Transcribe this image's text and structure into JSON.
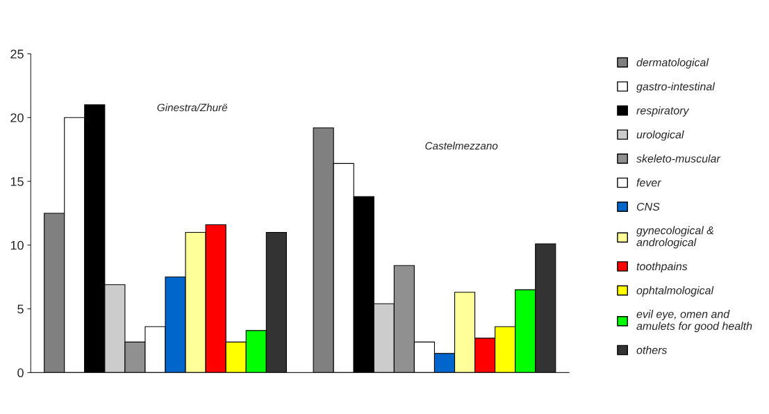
{
  "chart_data": {
    "type": "bar",
    "categories": [
      "Ginestra/Zhurë",
      "Castelmezzano"
    ],
    "series": [
      {
        "name": "dermatological",
        "color": "#808080",
        "values": [
          12.5,
          19.2
        ]
      },
      {
        "name": "gastro-intestinal",
        "color": "#ffffff",
        "values": [
          20,
          16.4
        ]
      },
      {
        "name": "respiratory",
        "color": "#000000",
        "values": [
          21,
          13.8
        ]
      },
      {
        "name": "urological",
        "color": "#cccccc",
        "values": [
          6.9,
          5.4
        ]
      },
      {
        "name": "skeleto-muscular",
        "color": "#909090",
        "values": [
          2.4,
          8.4
        ]
      },
      {
        "name": "fever",
        "color": "#ffffff",
        "values": [
          3.6,
          2.4
        ]
      },
      {
        "name": "CNS",
        "color": "#0066cc",
        "values": [
          7.5,
          1.5
        ]
      },
      {
        "name": "gynecological &\nandrological",
        "color": "#ffff99",
        "values": [
          11,
          6.3
        ]
      },
      {
        "name": "toothpains",
        "color": "#ff0000",
        "values": [
          11.6,
          2.7
        ]
      },
      {
        "name": "ophtalmological",
        "color": "#ffff00",
        "values": [
          2.4,
          3.6
        ]
      },
      {
        "name": "evil eye, omen and\namulets for good health",
        "color": "#00ff00",
        "values": [
          3.3,
          6.5
        ]
      },
      {
        "name": "others",
        "color": "#333333",
        "values": [
          11,
          10.1
        ]
      }
    ],
    "ylim": [
      0,
      25
    ],
    "yticks": [
      0,
      5,
      10,
      15,
      20,
      25
    ],
    "tick_labels": "y",
    "grid": false,
    "legend": "right"
  }
}
